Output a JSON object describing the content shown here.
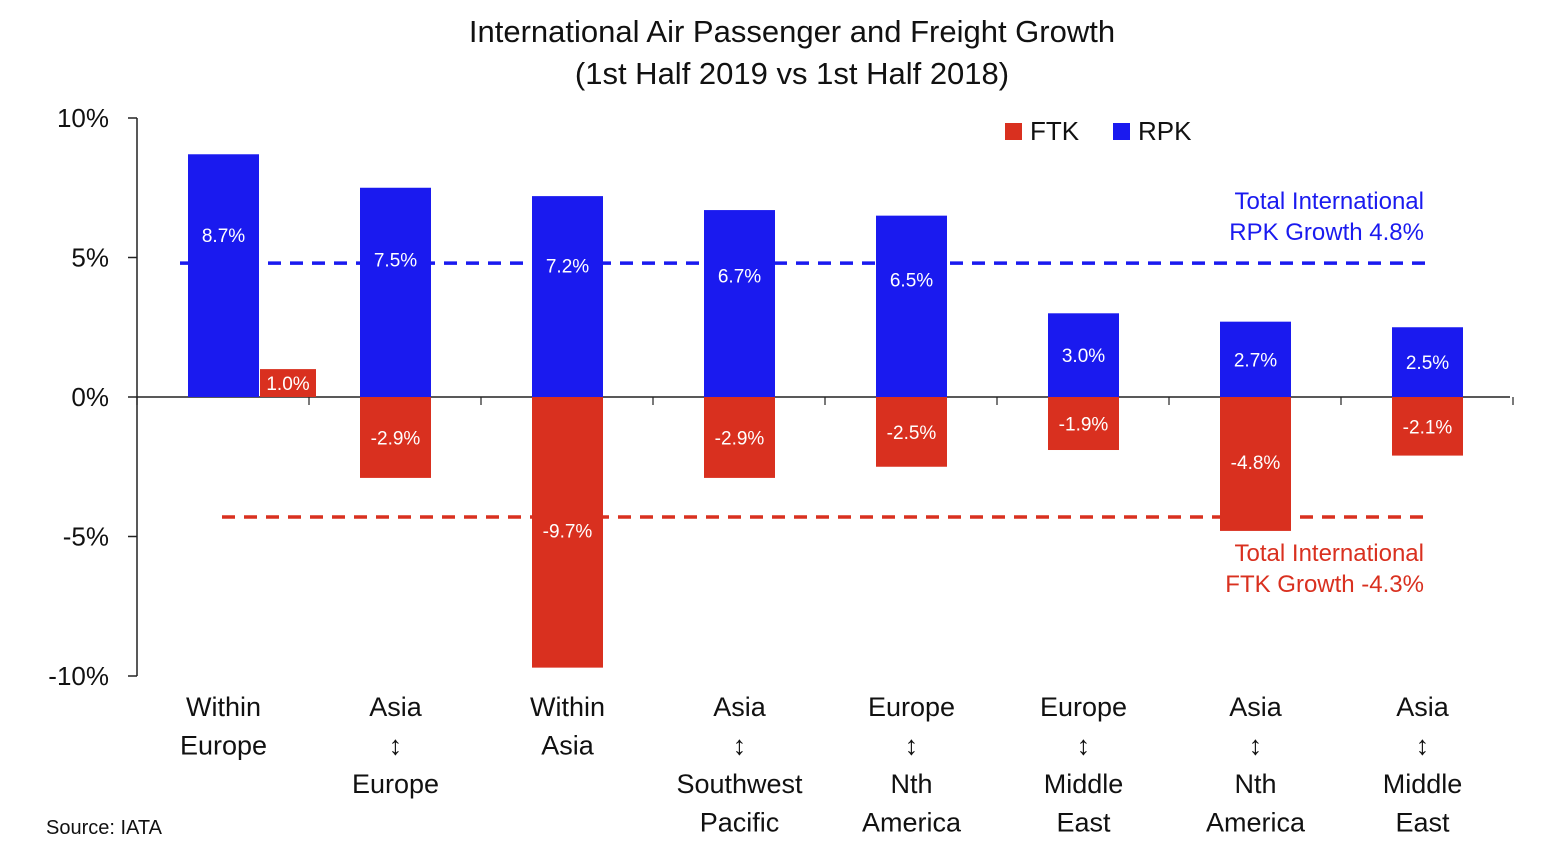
{
  "chart_data": {
    "type": "bar",
    "title": "International Air Passenger and Freight Growth",
    "subtitle": "(1st Half 2019 vs 1st Half 2018)",
    "categories": [
      [
        "Within",
        "Europe"
      ],
      [
        "Asia",
        "↕",
        "Europe"
      ],
      [
        "Within",
        "Asia"
      ],
      [
        "Asia",
        "↕",
        "Southwest",
        "Pacific"
      ],
      [
        "Europe",
        "↕",
        "Nth",
        "America"
      ],
      [
        "Europe",
        "↕",
        "Middle",
        "East"
      ],
      [
        "Asia",
        "↕",
        "Nth",
        "America"
      ],
      [
        "Asia",
        "↕",
        "Middle",
        "East"
      ]
    ],
    "series": [
      {
        "name": "RPK",
        "color": "#1a1aef",
        "values": [
          8.7,
          7.5,
          7.2,
          6.7,
          6.5,
          3.0,
          2.7,
          2.5
        ],
        "labels": [
          "8.7%",
          "7.5%",
          "7.2%",
          "6.7%",
          "6.5%",
          "3.0%",
          "2.7%",
          "2.5%"
        ]
      },
      {
        "name": "FTK",
        "color": "#d9301f",
        "values": [
          1.0,
          -2.9,
          -9.7,
          -2.9,
          -2.5,
          -1.9,
          -4.8,
          -2.1
        ],
        "labels": [
          "1.0%",
          "-2.9%",
          "-9.7%",
          "-2.9%",
          "-2.5%",
          "-1.9%",
          "-4.8%",
          "-2.1%"
        ]
      }
    ],
    "ylim": [
      -10,
      10
    ],
    "yticks": [
      10,
      5,
      0,
      -5,
      -10
    ],
    "ytick_labels": [
      "10%",
      "5%",
      "0%",
      "-5%",
      "-10%"
    ],
    "legend": {
      "position": "top-right",
      "items": [
        {
          "label": "FTK",
          "color": "#d9301f"
        },
        {
          "label": "RPK",
          "color": "#1a1aef"
        }
      ]
    },
    "reference_lines": [
      {
        "value": 4.8,
        "color": "#1a1aef",
        "style": "dashed",
        "label_lines": [
          "Total International",
          "RPK Growth  4.8%"
        ]
      },
      {
        "value": -4.3,
        "color": "#d9301f",
        "style": "dashed",
        "label_lines": [
          "Total International",
          "FTK Growth  -4.3%"
        ]
      }
    ],
    "grid": false
  },
  "source": "Source: IATA"
}
